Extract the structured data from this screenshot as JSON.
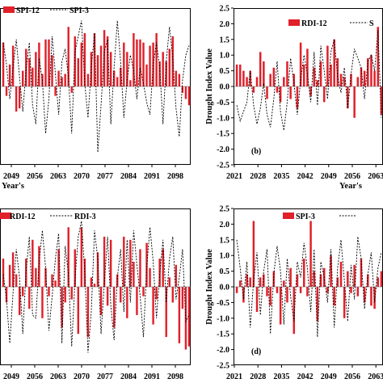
{
  "figure": {
    "ylabel": "Drought Index Value",
    "xlabel": "Year's"
  },
  "chart_data": [
    {
      "type": "bar",
      "panel_label": "",
      "series_bar_name": "SPI-12",
      "series_line_name": "SPI-3",
      "bar_color": "#e0202a",
      "ylim": [
        -2.5,
        2.5
      ],
      "yticks": [],
      "xticks": [
        "2049",
        "2056",
        "2063",
        "2070",
        "2077",
        "2084",
        "2091",
        "2098"
      ],
      "x_start": 2042,
      "bar_values": [
        1.4,
        -0.3,
        0.7,
        1.3,
        -0.8,
        -0.7,
        0.5,
        1.2,
        0.9,
        0.6,
        1.1,
        1.4,
        0.4,
        1.5,
        1.5,
        1.0,
        -0.3,
        0.5,
        0.3,
        0.4,
        1.9,
        -0.2,
        1.6,
        0.9,
        1.4,
        1.7,
        0.4,
        1.1,
        1.7,
        1.0,
        1.3,
        1.8,
        1.6,
        1.1,
        0.5,
        0.3,
        0.6,
        1.4,
        1.1,
        0.2,
        1.7,
        1.5,
        1.5,
        1.4,
        0.7,
        1.3,
        1.4,
        1.7,
        0.8,
        1.1,
        0.8,
        1.2,
        1.6,
        0.5,
        0.4,
        -0.2,
        -0.4,
        -0.6
      ],
      "line_values": [
        1.4,
        0.7,
        -0.4,
        0.6,
        1.5,
        0.3,
        -0.8,
        0.5,
        1.4,
        -0.6,
        -1.2,
        0.9,
        0.2,
        -1.5,
        -0.4,
        1.6,
        0.4,
        -0.9,
        0.8,
        1.2,
        0.3,
        -1.5,
        1.1,
        1.6,
        2.1,
        0.1,
        -1.0,
        0.6,
        1.7,
        -2.1,
        -0.6,
        1.1,
        1.5,
        -1.2,
        0.6,
        2.1,
        0.8,
        -1.0,
        0.2,
        1.0,
        0.5,
        -0.4,
        0.6,
        0.1,
        -0.5,
        -0.9,
        0.7,
        1.4,
        0.6,
        -1.2,
        0.8,
        1.9,
        0.9,
        -0.7,
        -1.6,
        0.2,
        1.0,
        1.3
      ]
    },
    {
      "type": "bar",
      "panel_label": "(b)",
      "series_bar_name": "RDI-12",
      "series_line_name": "S",
      "bar_color": "#e0202a",
      "ylim": [
        -2.5,
        2.5
      ],
      "yticks": [
        "2.5",
        "2.0",
        "1.5",
        "1.0",
        "0.5",
        "0.0",
        "-0.5",
        "-1.0",
        "-1.5",
        "-2.0",
        "-2.5"
      ],
      "xticks": [
        "2021",
        "2028",
        "2035",
        "2042",
        "2049",
        "2056",
        "2063"
      ],
      "x_start": 2021,
      "bar_values": [
        0.7,
        0.7,
        0.5,
        0.3,
        0.5,
        -0.2,
        0.3,
        1.1,
        0.8,
        -0.4,
        0.4,
        0.6,
        -0.2,
        -0.5,
        0.3,
        0.8,
        -0.4,
        0.4,
        -0.7,
        1.4,
        0.7,
        1.2,
        -0.3,
        0.6,
        0.2,
        0.8,
        -0.5,
        1.3,
        0.7,
        1.5,
        0.9,
        0.4,
        0.3,
        -0.7,
        0.4,
        -1.0,
        0.3,
        0.6,
        0.5,
        0.9,
        1.0,
        0.5,
        1.9,
        -0.9
      ],
      "line_values": [
        -0.6,
        -1.1,
        -0.8,
        -0.5,
        0.5,
        -0.6,
        -1.2,
        -0.7,
        0.1,
        -0.9,
        -1.3,
        -0.4,
        0.8,
        -0.8,
        -1.4,
        -0.5,
        0.9,
        0.1,
        -0.9,
        0.2,
        1.0,
        0.4,
        -0.5,
        1.1,
        -0.6,
        1.3,
        0.5,
        -0.4,
        1.1,
        1.5,
        0.3,
        -0.2,
        0.6,
        -0.7,
        0.4,
        1.2,
        0.9,
        0.6,
        -0.4,
        0.8,
        1.0,
        0.5,
        1.8,
        -1.0
      ]
    },
    {
      "type": "bar",
      "panel_label": "",
      "series_bar_name": "RDI-12",
      "series_line_name": "RDI-3",
      "bar_color": "#e0202a",
      "ylim": [
        -2.5,
        2.5
      ],
      "yticks": [],
      "xticks": [
        "2049",
        "2056",
        "2063",
        "2070",
        "2077",
        "2084",
        "2091",
        "2098"
      ],
      "x_start": 2042,
      "bar_values": [
        0.9,
        -0.5,
        0.7,
        1.1,
        0.4,
        -0.9,
        -0.3,
        0.9,
        -0.7,
        1.5,
        0.6,
        1.3,
        -1.0,
        0.6,
        -0.3,
        0.4,
        0.2,
        1.2,
        -1.3,
        -0.5,
        1.9,
        -0.4,
        1.2,
        -1.5,
        1.9,
        0.9,
        -1.6,
        0.3,
        0.1,
        1.1,
        -0.9,
        1.6,
        -0.6,
        1.5,
        -1.3,
        0.4,
        -0.5,
        1.6,
        -1.0,
        1.5,
        0.8,
        -0.9,
        1.2,
        -0.3,
        1.4,
        0.6,
        -1.2,
        -0.4,
        0.9,
        1.2,
        -1.6,
        0.3,
        -0.5,
        0.7,
        -1.8,
        -0.7,
        -2.0,
        -1.9
      ],
      "line_values": [
        0.4,
        -0.4,
        -1.8,
        -0.2,
        1.2,
        0.3,
        -1.5,
        0.5,
        1.6,
        -0.9,
        -1.0,
        0.8,
        1.8,
        0.6,
        -1.4,
        -0.3,
        0.9,
        1.7,
        -1.8,
        1.3,
        0.4,
        -1.9,
        0.2,
        1.6,
        2.1,
        0.5,
        -2.1,
        -0.8,
        1.8,
        0.9,
        -1.5,
        0.1,
        1.6,
        -0.6,
        -1.7,
        0.3,
        1.2,
        -0.8,
        1.5,
        -0.5,
        1.8,
        0.7,
        -0.3,
        -1.6,
        0.6,
        1.9,
        0.8,
        -1.0,
        0.4,
        1.5,
        -0.5,
        0.9,
        1.6,
        -0.4,
        0.3,
        1.2,
        -1.1,
        -0.9
      ]
    },
    {
      "type": "bar",
      "panel_label": "(d)",
      "series_bar_name": "SPI-3",
      "series_line_name": "",
      "bar_color": "#e0202a",
      "ylim": [
        -2.5,
        2.5
      ],
      "yticks": [
        "2.5",
        "2.0",
        "1.5",
        "1.0",
        "0.5",
        "0.0",
        "-0.5",
        "-1.0",
        "-1.5",
        "-2.0",
        "-2.5"
      ],
      "xticks": [
        "2021",
        "2028",
        "2035",
        "2042",
        "2049",
        "2056",
        "2063"
      ],
      "x_start": 2021,
      "bar_values": [
        -0.2,
        0.2,
        -0.5,
        0.4,
        0.3,
        2.1,
        -0.8,
        0.3,
        0.4,
        -0.3,
        -0.6,
        0.5,
        -0.2,
        -1.2,
        0.2,
        -0.5,
        0.6,
        -1.5,
        0.4,
        -0.2,
        0.9,
        -0.3,
        2.1,
        0.5,
        -1.1,
        0.4,
        0.6,
        -0.2,
        1.0,
        -0.6,
        0.3,
        0.8,
        -1.0,
        0.5,
        -0.2,
        0.7,
        -0.3,
        0.9,
        -0.5,
        0.4,
        -0.6,
        -0.7,
        0.3,
        0.5
      ],
      "line_values": [
        1.5,
        0.6,
        -0.4,
        0.8,
        -1.3,
        0.2,
        1.1,
        -0.9,
        0.5,
        1.2,
        -1.5,
        0.4,
        1.3,
        0.5,
        -1.2,
        0.9,
        -0.3,
        -1.1,
        0.8,
        0.3,
        1.4,
        0.6,
        -0.8,
        1.2,
        -1.6,
        0.8,
        0.3,
        -0.5,
        1.2,
        -1.3,
        0.6,
        1.5,
        0.2,
        -1.1,
        0.7,
        -0.4,
        1.6,
        0.9,
        -0.7,
        0.4,
        1.1,
        -0.5,
        0.6,
        1.1
      ]
    }
  ]
}
